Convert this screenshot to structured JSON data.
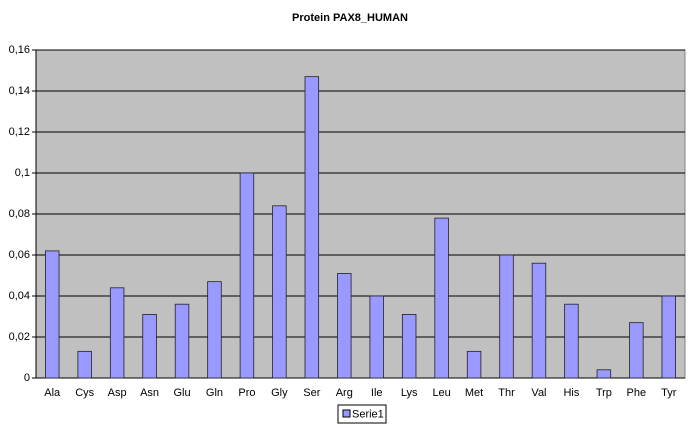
{
  "chart_data": {
    "type": "bar",
    "title": "Protein PAX8_HUMAN",
    "categories": [
      "Ala",
      "Cys",
      "Asp",
      "Asn",
      "Glu",
      "Gln",
      "Pro",
      "Gly",
      "Ser",
      "Arg",
      "Ile",
      "Lys",
      "Leu",
      "Met",
      "Thr",
      "Val",
      "His",
      "Trp",
      "Phe",
      "Tyr"
    ],
    "series": [
      {
        "name": "Serie1",
        "color": "#9999ff",
        "values": [
          0.062,
          0.013,
          0.044,
          0.031,
          0.036,
          0.047,
          0.1,
          0.084,
          0.147,
          0.051,
          0.04,
          0.031,
          0.078,
          0.013,
          0.06,
          0.056,
          0.036,
          0.004,
          0.027,
          0.04
        ]
      }
    ],
    "ylim": [
      0,
      0.16
    ],
    "yticks": [
      0,
      {
        "value": 0.02,
        "label": "0,02"
      },
      {
        "value": 0.04,
        "label": "0,04"
      },
      {
        "value": 0.06,
        "label": "0,06"
      },
      {
        "value": 0.08,
        "label": "0,08"
      },
      {
        "value": 0.1,
        "label": "0,1"
      },
      {
        "value": 0.12,
        "label": "0,12"
      },
      {
        "value": 0.14,
        "label": "0,14"
      },
      {
        "value": 0.16,
        "label": "0,16"
      }
    ],
    "grid": true,
    "legend": "bottom"
  }
}
